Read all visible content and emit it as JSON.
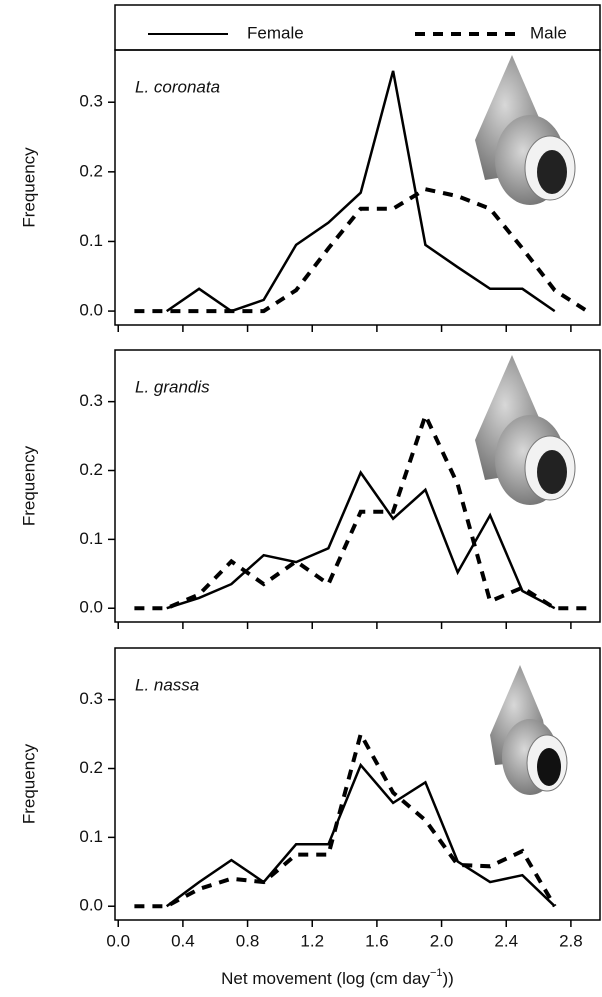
{
  "chart_data": [
    {
      "type": "line",
      "ylabel": "Frequency",
      "annotation": "L. coronata",
      "x": [
        0.1,
        0.3,
        0.5,
        0.7,
        0.9,
        1.1,
        1.3,
        1.5,
        1.7,
        1.9,
        2.1,
        2.3,
        2.5,
        2.7,
        2.9
      ],
      "series": [
        {
          "name": "Female",
          "color": "#000000",
          "style": "solid",
          "values": [
            null,
            0,
            0.032,
            0,
            0.016,
            0.095,
            0.127,
            0.17,
            0.345,
            0.095,
            0.063,
            0.032,
            0.032,
            0,
            null
          ]
        },
        {
          "name": "Male",
          "color": "#000000",
          "style": "dashed",
          "values": [
            0,
            0,
            0,
            0,
            0,
            0.03,
            0.09,
            0.147,
            0.147,
            0.175,
            0.165,
            0.147,
            0.09,
            0.03,
            0
          ]
        }
      ],
      "xlim": [
        -0.02,
        2.98
      ],
      "ylim": [
        -0.02,
        0.375
      ],
      "xticks": [
        {
          "value": 0,
          "label": "0.0"
        },
        0.4,
        0.8,
        1.2,
        1.6,
        {
          "value": 2,
          "label": "2.0"
        },
        2.4,
        2.8
      ],
      "yticks": [
        {
          "value": 0,
          "label": "0.0"
        },
        0.1,
        0.2,
        0.3
      ]
    },
    {
      "type": "line",
      "ylabel": "Frequency",
      "annotation": "L. grandis",
      "x": [
        0.1,
        0.3,
        0.5,
        0.7,
        0.9,
        1.1,
        1.3,
        1.5,
        1.7,
        1.9,
        2.1,
        2.3,
        2.5,
        2.7,
        2.9
      ],
      "series": [
        {
          "color": "#000000",
          "style": "solid",
          "values": [
            null,
            0,
            0.015,
            0.035,
            0.077,
            0.067,
            0.087,
            0.197,
            0.13,
            0.172,
            0.052,
            0.135,
            0.025,
            0,
            null
          ]
        },
        {
          "color": "#000000",
          "style": "dashed",
          "values": [
            0,
            0,
            0.02,
            0.068,
            0.035,
            0.068,
            0.035,
            0.14,
            0.14,
            0.28,
            0.18,
            0.01,
            0.03,
            0,
            0
          ]
        }
      ],
      "xlim": [
        -0.02,
        2.98
      ],
      "ylim": [
        -0.02,
        0.375
      ],
      "xticks": [
        {
          "value": 0,
          "label": "0.0"
        },
        0.4,
        0.8,
        1.2,
        1.6,
        {
          "value": 2,
          "label": "2.0"
        },
        2.4,
        2.8
      ],
      "yticks": [
        {
          "value": 0,
          "label": "0.0"
        },
        0.1,
        0.2,
        0.3
      ]
    },
    {
      "type": "line",
      "ylabel": "Frequency",
      "annotation": "L. nassa",
      "xlabel": {
        "text": "Net movement (log (cm day",
        "sup": "−1",
        "end": "))"
      },
      "x": [
        0.1,
        0.3,
        0.5,
        0.7,
        0.9,
        1.1,
        1.3,
        1.5,
        1.7,
        1.9,
        2.1,
        2.3,
        2.5,
        2.7,
        2.9
      ],
      "series": [
        {
          "color": "#000000",
          "style": "solid",
          "values": [
            null,
            0,
            0.035,
            0.067,
            0.035,
            0.09,
            0.09,
            0.205,
            0.15,
            0.18,
            0.065,
            0.035,
            0.045,
            0,
            null
          ]
        },
        {
          "color": "#000000",
          "style": "dashed",
          "values": [
            0,
            0,
            0.025,
            0.04,
            0.035,
            0.075,
            0.075,
            0.25,
            0.165,
            0.125,
            0.06,
            0.058,
            0.08,
            0,
            null
          ]
        }
      ],
      "xlim": [
        -0.02,
        2.98
      ],
      "ylim": [
        -0.02,
        0.375
      ],
      "xticks": [
        {
          "value": 0,
          "label": "0.0"
        },
        0.4,
        0.8,
        1.2,
        1.6,
        {
          "value": 2,
          "label": "2.0"
        },
        2.4,
        2.8
      ],
      "yticks": [
        {
          "value": 0,
          "label": "0.0"
        },
        0.1,
        0.2,
        0.3
      ]
    }
  ]
}
